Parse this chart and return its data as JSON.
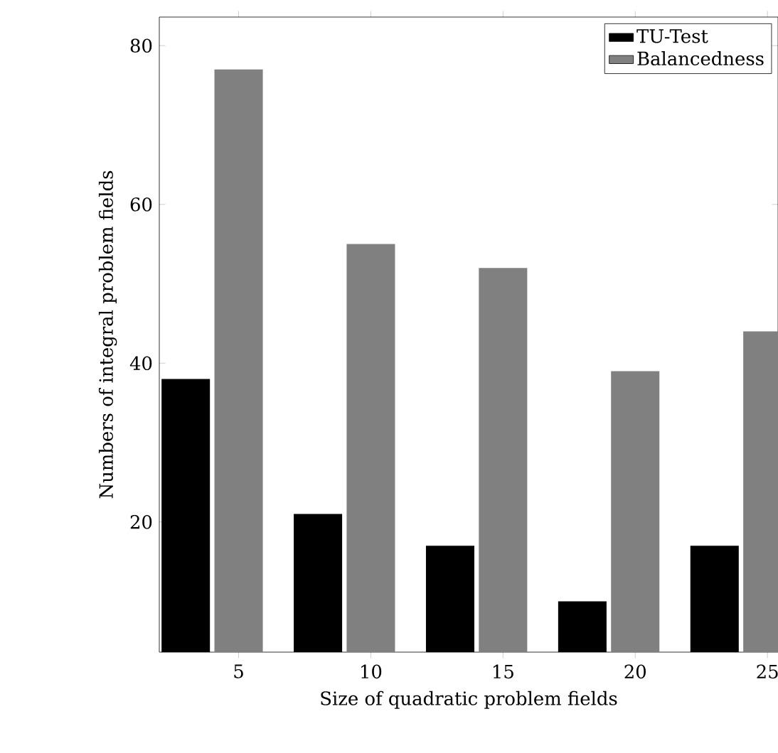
{
  "chart_data": {
    "type": "bar",
    "xlabel": "Size of quadratic problem fields",
    "ylabel": "Numbers of integral problem fields",
    "x": [
      5,
      10,
      15,
      20,
      25
    ],
    "series": [
      {
        "name": "TU-Test",
        "color": "#000000",
        "values": [
          38,
          21,
          17,
          10,
          17
        ]
      },
      {
        "name": "Balancedness",
        "color": "#808080",
        "values": [
          77,
          55,
          52,
          39,
          44
        ]
      }
    ],
    "xlim": [
      2,
      25.4
    ],
    "ylim": [
      3.6,
      83.6
    ],
    "xticks": [
      5,
      10,
      15,
      20,
      25
    ],
    "yticks": [
      20,
      40,
      60,
      80
    ],
    "grid": false,
    "legend": "top right"
  }
}
